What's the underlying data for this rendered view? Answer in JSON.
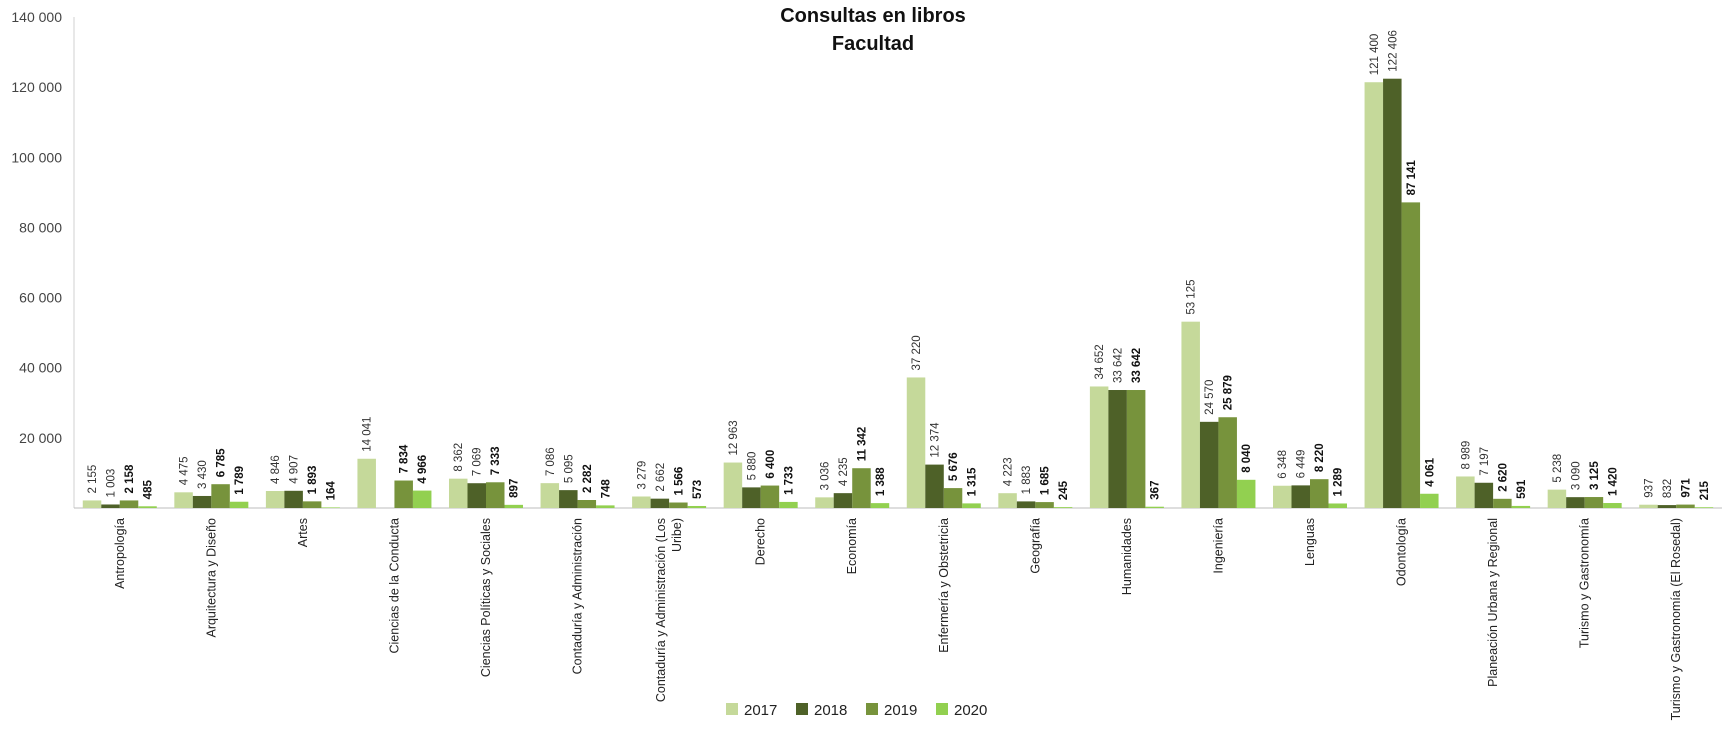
{
  "chart_data": {
    "type": "bar",
    "title": "Consultas en libros",
    "subtitle": "Facultad",
    "xlabel": "",
    "ylabel": "",
    "ylim": [
      0,
      140000
    ],
    "yticks": [
      {
        "value": 20000,
        "label": "20 000"
      },
      {
        "value": 40000,
        "label": "40 000"
      },
      {
        "value": 60000,
        "label": "60 000"
      },
      {
        "value": 80000,
        "label": "80 000"
      },
      {
        "value": 100000,
        "label": "100 000"
      },
      {
        "value": 120000,
        "label": "120 000"
      },
      {
        "value": 140000,
        "label": "140 000"
      }
    ],
    "grid": false,
    "legend_position": "bottom",
    "categories": [
      "Antropología",
      "Arquitectura y Diseño",
      "Artes",
      "Ciencias de la Conducta",
      "Ciencias Políticas y Sociales",
      "Contaduría y Administración",
      "Contaduría y Administración (Los Uribe)",
      "Derecho",
      "Economía",
      "Enfermería y Obstetricia",
      "Geografía",
      "Humanidades",
      "Ingeniería",
      "Lenguas",
      "Odontología",
      "Planeación Urbana y Regional",
      "Turismo y Gastronomía",
      "Turismo y Gastronomía (El Rosedal)"
    ],
    "category_lines": [
      [
        "Antropología"
      ],
      [
        "Arquitectura y Diseño"
      ],
      [
        "Artes"
      ],
      [
        "Ciencias de la Conducta"
      ],
      [
        "Ciencias Políticas y Sociales"
      ],
      [
        "Contaduría y Administración"
      ],
      [
        "Contaduría y Administración (Los",
        "Uribe)"
      ],
      [
        "Derecho"
      ],
      [
        "Economía"
      ],
      [
        "Enfermería y Obstetricia"
      ],
      [
        "Geografía"
      ],
      [
        "Humanidades"
      ],
      [
        "Ingeniería"
      ],
      [
        "Lenguas"
      ],
      [
        "Odontología"
      ],
      [
        "Planeación Urbana y Regional"
      ],
      [
        "Turismo y Gastronomía"
      ],
      [
        "Turismo y Gastronomía (El Rosedal)"
      ]
    ],
    "series": [
      {
        "name": "2017",
        "color": "#c5d99a",
        "values": [
          2155,
          4475,
          4846,
          14041,
          8362,
          7086,
          3279,
          12963,
          3036,
          37220,
          4223,
          34652,
          53125,
          6348,
          121400,
          8989,
          5238,
          937
        ],
        "labels": [
          "2 155",
          "4 475",
          "4 846",
          "14 041",
          "8 362",
          "7 086",
          "3 279",
          "12 963",
          "3 036",
          "37 220",
          "4 223",
          "34 652",
          "53 125",
          "6 348",
          "121 400",
          "8 989",
          "5 238",
          "937"
        ]
      },
      {
        "name": "2018",
        "color": "#4e6128",
        "values": [
          1003,
          3430,
          4907,
          null,
          7069,
          5095,
          2662,
          5880,
          4235,
          12374,
          1883,
          33642,
          24570,
          6449,
          122406,
          7197,
          3090,
          832
        ],
        "labels": [
          "1 003",
          "3 430",
          "4 907",
          "",
          "7 069",
          "5 095",
          "2 662",
          "5 880",
          "4 235",
          "12 374",
          "1 883",
          "33 642",
          "24 570",
          "6 449",
          "122 406",
          "7 197",
          "3 090",
          "832"
        ]
      },
      {
        "name": "2019",
        "color": "#77933c",
        "values": [
          2158,
          6785,
          1893,
          7834,
          7333,
          2282,
          1566,
          6400,
          11342,
          5676,
          1685,
          33642,
          25879,
          8220,
          87141,
          2620,
          3125,
          971
        ],
        "labels": [
          "2 158",
          "6 785",
          "1 893",
          "7 834",
          "7 333",
          "2 282",
          "1 566",
          "6 400",
          "11 342",
          "5 676",
          "1 685",
          "33 642",
          "25 879",
          "8 220",
          "87 141",
          "2 620",
          "3 125",
          "971"
        ]
      },
      {
        "name": "2020",
        "color": "#92d050",
        "values": [
          485,
          1789,
          164,
          4966,
          897,
          748,
          573,
          1733,
          1388,
          1315,
          245,
          367,
          8040,
          1289,
          4061,
          591,
          1420,
          215
        ],
        "labels": [
          "485",
          "1 789",
          "164",
          "4 966",
          "897",
          "748",
          "573",
          "1 733",
          "1 388",
          "1 315",
          "245",
          "367",
          "8 040",
          "1 289",
          "4 061",
          "591",
          "1 420",
          "215"
        ]
      }
    ]
  }
}
